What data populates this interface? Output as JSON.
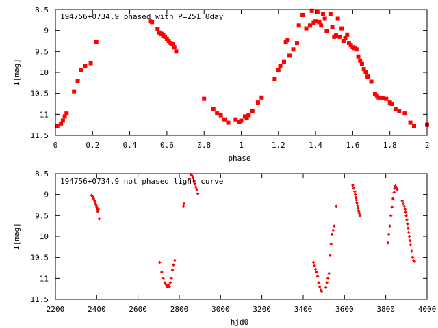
{
  "colors": {
    "points": "#ff0000",
    "axis": "#000000",
    "background": "#ffffff"
  },
  "chart_data": [
    {
      "type": "scatter",
      "title": "194756+0734.9 phased with P=251.0day",
      "xlabel": "phase",
      "ylabel": "I[mag]",
      "xlim": [
        0,
        2
      ],
      "ylim": [
        11.5,
        8.5
      ],
      "y_inverted": true,
      "grid": false,
      "x_ticks": [
        "0",
        "0.2",
        "0.4",
        "0.6",
        "0.8",
        "1",
        "1.2",
        "1.4",
        "1.6",
        "1.8",
        "2"
      ],
      "y_ticks": [
        "8.5",
        "9",
        "9.5",
        "10",
        "10.5",
        "11",
        "11.5"
      ],
      "x_tick_values": [
        0,
        0.2,
        0.4,
        0.6,
        0.8,
        1,
        1.2,
        1.4,
        1.6,
        1.8,
        2
      ],
      "y_tick_values": [
        8.5,
        9,
        9.5,
        10,
        10.5,
        11,
        11.5
      ],
      "series": [
        {
          "marker": "filled-square",
          "x": [
            0.01,
            0.03,
            0.04,
            0.05,
            0.06,
            0.1,
            0.12,
            0.14,
            0.16,
            0.19,
            0.22,
            0.51,
            0.52,
            0.55,
            0.56,
            0.57,
            0.58,
            0.59,
            0.6,
            0.61,
            0.62,
            0.63,
            0.64,
            0.65,
            0.8,
            0.85,
            0.87,
            0.89,
            0.91,
            0.93,
            0.97,
            0.99,
            1.0,
            1.02,
            1.03,
            1.04,
            1.06,
            1.09,
            1.11,
            1.18,
            1.2,
            1.21,
            1.23,
            1.24,
            1.25,
            1.26,
            1.28,
            1.3,
            1.31,
            1.33,
            1.35,
            1.37,
            1.38,
            1.39,
            1.4,
            1.41,
            1.42,
            1.43,
            1.44,
            1.45,
            1.46,
            1.48,
            1.49,
            1.5,
            1.51,
            1.52,
            1.53,
            1.54,
            1.55,
            1.56,
            1.57,
            1.58,
            1.59,
            1.6,
            1.61,
            1.62,
            1.63,
            1.64,
            1.65,
            1.66,
            1.67,
            1.68,
            1.7,
            1.72,
            1.73,
            1.74,
            1.76,
            1.78,
            1.8,
            1.81,
            1.83,
            1.85,
            1.88,
            1.91,
            1.93,
            2.0
          ],
          "y": [
            11.28,
            11.22,
            11.15,
            11.05,
            10.98,
            10.45,
            10.2,
            9.95,
            9.85,
            9.78,
            9.28,
            8.78,
            8.8,
            8.97,
            9.05,
            9.08,
            9.12,
            9.15,
            9.2,
            9.25,
            9.3,
            9.33,
            9.4,
            9.5,
            10.63,
            10.88,
            10.98,
            11.02,
            11.12,
            11.2,
            11.12,
            11.18,
            11.15,
            11.05,
            11.08,
            11.02,
            10.92,
            10.72,
            10.6,
            10.15,
            9.95,
            9.85,
            9.75,
            9.28,
            9.22,
            9.6,
            9.45,
            9.3,
            8.88,
            8.63,
            8.95,
            8.88,
            8.53,
            8.82,
            8.78,
            8.55,
            8.8,
            8.88,
            8.6,
            8.72,
            9.02,
            8.6,
            8.92,
            9.15,
            9.12,
            8.72,
            9.15,
            8.95,
            9.25,
            9.18,
            9.1,
            9.3,
            9.35,
            9.4,
            9.42,
            9.45,
            9.62,
            9.72,
            9.8,
            9.92,
            10.0,
            10.1,
            10.22,
            10.52,
            10.55,
            10.6,
            10.62,
            10.63,
            10.72,
            10.75,
            10.88,
            10.92,
            10.98,
            11.2,
            11.28,
            11.25
          ]
        }
      ]
    },
    {
      "type": "scatter",
      "title": "194756+0734.9 not phased light curve",
      "xlabel": "hjd0",
      "ylabel": "I[mag]",
      "xlim": [
        2200,
        4000
      ],
      "ylim": [
        11.5,
        8.5
      ],
      "y_inverted": true,
      "grid": false,
      "x_ticks": [
        "2200",
        "2400",
        "2600",
        "2800",
        "3000",
        "3200",
        "3400",
        "3600",
        "3800",
        "4000"
      ],
      "y_ticks": [
        "8.5",
        "9",
        "9.5",
        "10",
        "10.5",
        "11",
        "11.5"
      ],
      "x_tick_values": [
        2200,
        2400,
        2600,
        2800,
        3000,
        3200,
        3400,
        3600,
        3800,
        4000
      ],
      "y_tick_values": [
        8.5,
        9,
        9.5,
        10,
        10.5,
        11,
        11.5
      ],
      "series": [
        {
          "marker": "small-diamond",
          "x": [
            2375,
            2380,
            2385,
            2390,
            2393,
            2397,
            2400,
            2403,
            2405,
            2408,
            2412,
            2705,
            2715,
            2722,
            2730,
            2737,
            2742,
            2747,
            2752,
            2757,
            2762,
            2767,
            2772,
            2778,
            2820,
            2823,
            2850,
            2856,
            2862,
            2867,
            2872,
            2876,
            2880,
            2885,
            2890,
            3450,
            3455,
            3460,
            3465,
            3470,
            3475,
            3480,
            3485,
            3490,
            3510,
            3515,
            3520,
            3525,
            3530,
            3535,
            3540,
            3545,
            3550,
            3560,
            3640,
            3645,
            3650,
            3652,
            3655,
            3658,
            3660,
            3663,
            3666,
            3669,
            3672,
            3675,
            3810,
            3815,
            3820,
            3825,
            3830,
            3835,
            3840,
            3843,
            3846,
            3849,
            3852,
            3855,
            3880,
            3885,
            3890,
            3893,
            3896,
            3899,
            3902,
            3905,
            3908,
            3911,
            3914,
            3917,
            3920,
            3925,
            3930,
            3935,
            3940
          ],
          "y": [
            9.02,
            9.05,
            9.1,
            9.15,
            9.2,
            9.25,
            9.3,
            9.35,
            9.4,
            9.35,
            9.58,
            10.62,
            10.85,
            11.0,
            11.1,
            11.15,
            11.2,
            11.15,
            11.2,
            11.1,
            11.0,
            10.8,
            10.68,
            10.57,
            9.28,
            9.22,
            8.63,
            8.52,
            8.55,
            8.6,
            8.68,
            8.75,
            8.82,
            8.88,
            8.98,
            10.62,
            10.7,
            10.78,
            10.85,
            10.95,
            11.1,
            11.2,
            11.28,
            11.32,
            11.22,
            11.1,
            11.0,
            10.88,
            10.45,
            10.18,
            9.95,
            9.85,
            9.75,
            9.28,
            8.78,
            8.85,
            8.93,
            9.0,
            9.07,
            9.13,
            9.2,
            9.27,
            9.33,
            9.4,
            9.45,
            9.5,
            10.15,
            9.95,
            9.75,
            9.5,
            9.3,
            9.1,
            8.95,
            8.85,
            8.8,
            8.82,
            8.85,
            8.88,
            9.15,
            9.22,
            9.28,
            9.35,
            9.42,
            9.5,
            9.6,
            9.7,
            9.8,
            9.9,
            10.0,
            10.1,
            10.2,
            10.35,
            10.5,
            10.58,
            10.6
          ]
        }
      ]
    }
  ]
}
